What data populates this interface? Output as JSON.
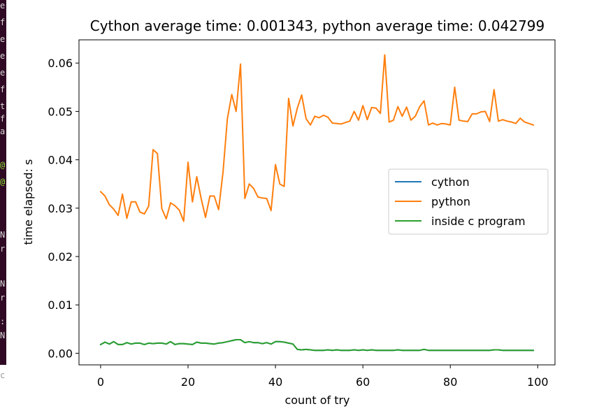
{
  "terminal": {
    "chars": [
      "e",
      "f",
      "e",
      "e",
      "e",
      "f",
      "t",
      "f",
      "a",
      "@",
      "@",
      "N",
      "r",
      "N",
      "r",
      ":",
      "N"
    ],
    "bottom_char": "c"
  },
  "chart_data": {
    "type": "line",
    "title": "Cython average time: 0.001343, python average time: 0.042799",
    "xlabel": "count of try",
    "ylabel": "time elapsed: s",
    "xlim": [
      -4.95,
      103.95
    ],
    "ylim": [
      -0.0024,
      0.0648
    ],
    "xticks": [
      0,
      20,
      40,
      60,
      80,
      100
    ],
    "xtick_labels": [
      "0",
      "20",
      "40",
      "60",
      "80",
      "100"
    ],
    "yticks": [
      0.0,
      0.01,
      0.02,
      0.03,
      0.04,
      0.05,
      0.06
    ],
    "ytick_labels": [
      "0.00",
      "0.01",
      "0.02",
      "0.03",
      "0.04",
      "0.05",
      "0.06"
    ],
    "grid": false,
    "legend_position": "center-right",
    "legend": [
      "cython",
      "python",
      "inside c program"
    ],
    "x": [
      0,
      1,
      2,
      3,
      4,
      5,
      6,
      7,
      8,
      9,
      10,
      11,
      12,
      13,
      14,
      15,
      16,
      17,
      18,
      19,
      20,
      21,
      22,
      23,
      24,
      25,
      26,
      27,
      28,
      29,
      30,
      31,
      32,
      33,
      34,
      35,
      36,
      37,
      38,
      39,
      40,
      41,
      42,
      43,
      44,
      45,
      46,
      47,
      48,
      49,
      50,
      51,
      52,
      53,
      54,
      55,
      56,
      57,
      58,
      59,
      60,
      61,
      62,
      63,
      64,
      65,
      66,
      67,
      68,
      69,
      70,
      71,
      72,
      73,
      74,
      75,
      76,
      77,
      78,
      79,
      80,
      81,
      82,
      83,
      84,
      85,
      86,
      87,
      88,
      89,
      90,
      91,
      92,
      93,
      94,
      95,
      96,
      97,
      98,
      99
    ],
    "series": [
      {
        "name": "cython",
        "color": "#1f77b4",
        "values": [
          0.0018,
          0.0023,
          0.0019,
          0.0024,
          0.0018,
          0.0018,
          0.0022,
          0.0019,
          0.0021,
          0.0021,
          0.0018,
          0.0021,
          0.002,
          0.0021,
          0.0021,
          0.0019,
          0.0024,
          0.0018,
          0.002,
          0.002,
          0.0019,
          0.0018,
          0.0023,
          0.0021,
          0.0021,
          0.002,
          0.0019,
          0.0021,
          0.0022,
          0.0024,
          0.0026,
          0.0028,
          0.0028,
          0.0022,
          0.0024,
          0.0022,
          0.0022,
          0.002,
          0.0022,
          0.0019,
          0.0024,
          0.0024,
          0.0023,
          0.0021,
          0.0019,
          0.0008,
          0.0007,
          0.0008,
          0.0007,
          0.0006,
          0.0006,
          0.0006,
          0.0007,
          0.0006,
          0.0007,
          0.0006,
          0.0006,
          0.0006,
          0.0007,
          0.0006,
          0.0007,
          0.0006,
          0.0007,
          0.0006,
          0.0006,
          0.0006,
          0.0006,
          0.0006,
          0.0007,
          0.0006,
          0.0006,
          0.0006,
          0.0006,
          0.0006,
          0.0008,
          0.0006,
          0.0006,
          0.0006,
          0.0006,
          0.0006,
          0.0006,
          0.0006,
          0.0006,
          0.0006,
          0.0006,
          0.0006,
          0.0006,
          0.0006,
          0.0006,
          0.0006,
          0.0007,
          0.0007,
          0.0006,
          0.0006,
          0.0006,
          0.0006,
          0.0006,
          0.0006,
          0.0006,
          0.0006
        ]
      },
      {
        "name": "python",
        "color": "#ff7f0e",
        "values": [
          0.0334,
          0.0325,
          0.0307,
          0.0298,
          0.0285,
          0.0329,
          0.0279,
          0.0313,
          0.0313,
          0.0292,
          0.0288,
          0.0304,
          0.0421,
          0.0413,
          0.0299,
          0.0278,
          0.0311,
          0.0305,
          0.0296,
          0.0273,
          0.0395,
          0.0313,
          0.0365,
          0.032,
          0.0281,
          0.0325,
          0.0325,
          0.0297,
          0.0375,
          0.0485,
          0.0535,
          0.05,
          0.0598,
          0.032,
          0.035,
          0.0341,
          0.0323,
          0.0321,
          0.032,
          0.0295,
          0.039,
          0.035,
          0.0345,
          0.0527,
          0.047,
          0.0507,
          0.0534,
          0.0485,
          0.0472,
          0.049,
          0.0487,
          0.0492,
          0.0488,
          0.0476,
          0.0475,
          0.0474,
          0.0477,
          0.048,
          0.05,
          0.0482,
          0.0512,
          0.0483,
          0.0508,
          0.0507,
          0.0496,
          0.0617,
          0.0478,
          0.0482,
          0.051,
          0.049,
          0.0509,
          0.0482,
          0.049,
          0.051,
          0.0522,
          0.0472,
          0.0476,
          0.0472,
          0.0475,
          0.0474,
          0.0472,
          0.055,
          0.0482,
          0.048,
          0.0479,
          0.0495,
          0.0495,
          0.0499,
          0.05,
          0.0479,
          0.0545,
          0.048,
          0.0483,
          0.048,
          0.0478,
          0.0475,
          0.0486,
          0.0478,
          0.0475,
          0.0472
        ]
      },
      {
        "name": "inside c program",
        "color": "#2ca02c",
        "values": [
          0.0018,
          0.0023,
          0.0019,
          0.0024,
          0.0018,
          0.0018,
          0.0022,
          0.0019,
          0.0021,
          0.0021,
          0.0018,
          0.0021,
          0.002,
          0.0021,
          0.0021,
          0.0019,
          0.0024,
          0.0018,
          0.002,
          0.002,
          0.0019,
          0.0018,
          0.0023,
          0.0021,
          0.0021,
          0.002,
          0.0019,
          0.0021,
          0.0022,
          0.0024,
          0.0026,
          0.0028,
          0.0028,
          0.0022,
          0.0024,
          0.0022,
          0.0022,
          0.002,
          0.0022,
          0.0019,
          0.0024,
          0.0024,
          0.0023,
          0.0021,
          0.0019,
          0.0008,
          0.0007,
          0.0008,
          0.0007,
          0.0006,
          0.0006,
          0.0006,
          0.0007,
          0.0006,
          0.0007,
          0.0006,
          0.0006,
          0.0006,
          0.0007,
          0.0006,
          0.0007,
          0.0006,
          0.0007,
          0.0006,
          0.0006,
          0.0006,
          0.0006,
          0.0006,
          0.0007,
          0.0006,
          0.0006,
          0.0006,
          0.0006,
          0.0006,
          0.0008,
          0.0006,
          0.0006,
          0.0006,
          0.0006,
          0.0006,
          0.0006,
          0.0006,
          0.0006,
          0.0006,
          0.0006,
          0.0006,
          0.0006,
          0.0006,
          0.0006,
          0.0006,
          0.0007,
          0.0007,
          0.0006,
          0.0006,
          0.0006,
          0.0006,
          0.0006,
          0.0006,
          0.0006,
          0.0006
        ]
      }
    ]
  }
}
